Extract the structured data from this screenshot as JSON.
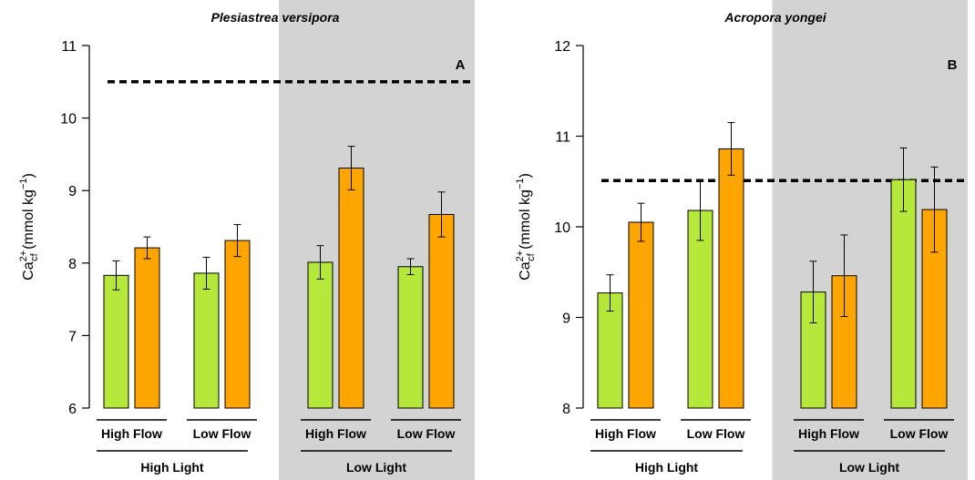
{
  "chart_data": [
    {
      "type": "bar",
      "title": "Plesiastrea versipora",
      "panel_label": "A",
      "ylabel": {
        "main": "Ca",
        "sup": "2+",
        "sub": "cf",
        "unit_prefix": " (mmol kg",
        "unit_sup": "−1",
        "unit_suffix": ")"
      },
      "ylim": [
        6,
        11
      ],
      "yticks": [
        "6",
        "7",
        "8",
        "9",
        "10",
        "11"
      ],
      "reference_line": 10.5,
      "shaded_group": "Low Light",
      "groups": [
        {
          "light": "High Light",
          "flows": [
            {
              "label": "High Flow",
              "values": [
                7.83,
                8.21
              ],
              "errors": [
                0.2,
                0.15
              ]
            },
            {
              "label": "Low Flow",
              "values": [
                7.86,
                8.31
              ],
              "errors": [
                0.22,
                0.22
              ]
            }
          ]
        },
        {
          "light": "Low Light",
          "flows": [
            {
              "label": "High Flow",
              "values": [
                8.01,
                9.31
              ],
              "errors": [
                0.23,
                0.3
              ]
            },
            {
              "label": "Low Flow",
              "values": [
                7.95,
                8.67
              ],
              "errors": [
                0.11,
                0.31
              ]
            }
          ]
        }
      ]
    },
    {
      "type": "bar",
      "title": "Acropora yongei",
      "panel_label": "B",
      "ylabel": {
        "main": "Ca",
        "sup": "2+",
        "sub": "cf",
        "unit_prefix": " (mmol kg",
        "unit_sup": "−1",
        "unit_suffix": ")"
      },
      "ylim": [
        8,
        12
      ],
      "yticks": [
        "8",
        "9",
        "10",
        "11",
        "12"
      ],
      "reference_line": 10.51,
      "shaded_group": "Low Light",
      "groups": [
        {
          "light": "High Light",
          "flows": [
            {
              "label": "High Flow",
              "values": [
                9.27,
                10.05
              ],
              "errors": [
                0.2,
                0.21
              ]
            },
            {
              "label": "Low Flow",
              "values": [
                10.18,
                10.86
              ],
              "errors": [
                0.33,
                0.29
              ]
            }
          ]
        },
        {
          "light": "Low Light",
          "flows": [
            {
              "label": "High Flow",
              "values": [
                9.28,
                9.46
              ],
              "errors": [
                0.34,
                0.45
              ]
            },
            {
              "label": "Low Flow",
              "values": [
                10.52,
                10.19
              ],
              "errors": [
                0.35,
                0.47
              ]
            }
          ]
        }
      ]
    }
  ],
  "colors": {
    "series_1": "#b5e83a",
    "series_2": "#ffa500",
    "shade": "#d3d3d3",
    "ink": "#000000"
  }
}
